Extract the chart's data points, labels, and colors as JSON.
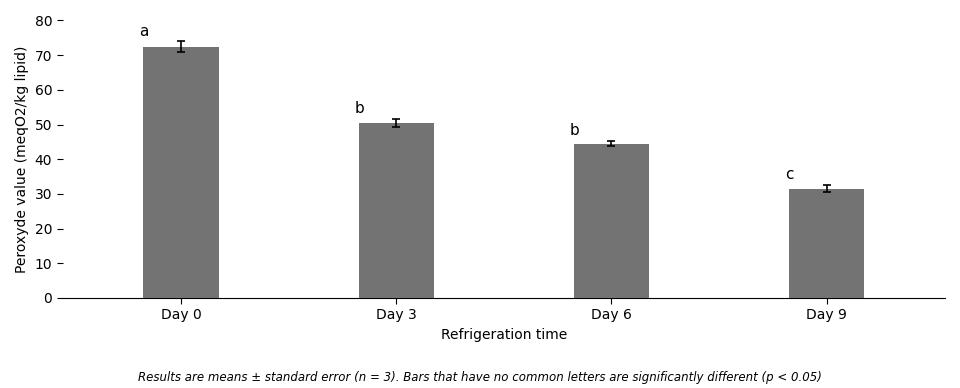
{
  "categories": [
    "Day 0",
    "Day 3",
    "Day 6",
    "Day 9"
  ],
  "values": [
    72.5,
    50.5,
    44.5,
    31.5
  ],
  "errors": [
    1.5,
    1.2,
    0.8,
    1.0
  ],
  "letters": [
    "a",
    "b",
    "b",
    "c"
  ],
  "bar_color": "#737373",
  "bar_width": 0.35,
  "xlabel": "Refrigeration time",
  "ylabel": "Peroxyde value (meqO2/kg lipid)",
  "ylim": [
    0,
    80
  ],
  "yticks": [
    0,
    10,
    20,
    30,
    40,
    50,
    60,
    70,
    80
  ],
  "footnote": "Results are means ± standard error (n = 3). Bars that have no common letters are significantly different (p < 0.05)",
  "xlabel_fontsize": 10,
  "ylabel_fontsize": 10,
  "tick_fontsize": 10,
  "letter_fontsize": 11,
  "footnote_fontsize": 8.5,
  "errorbar_capsize": 3,
  "errorbar_linewidth": 1.2
}
